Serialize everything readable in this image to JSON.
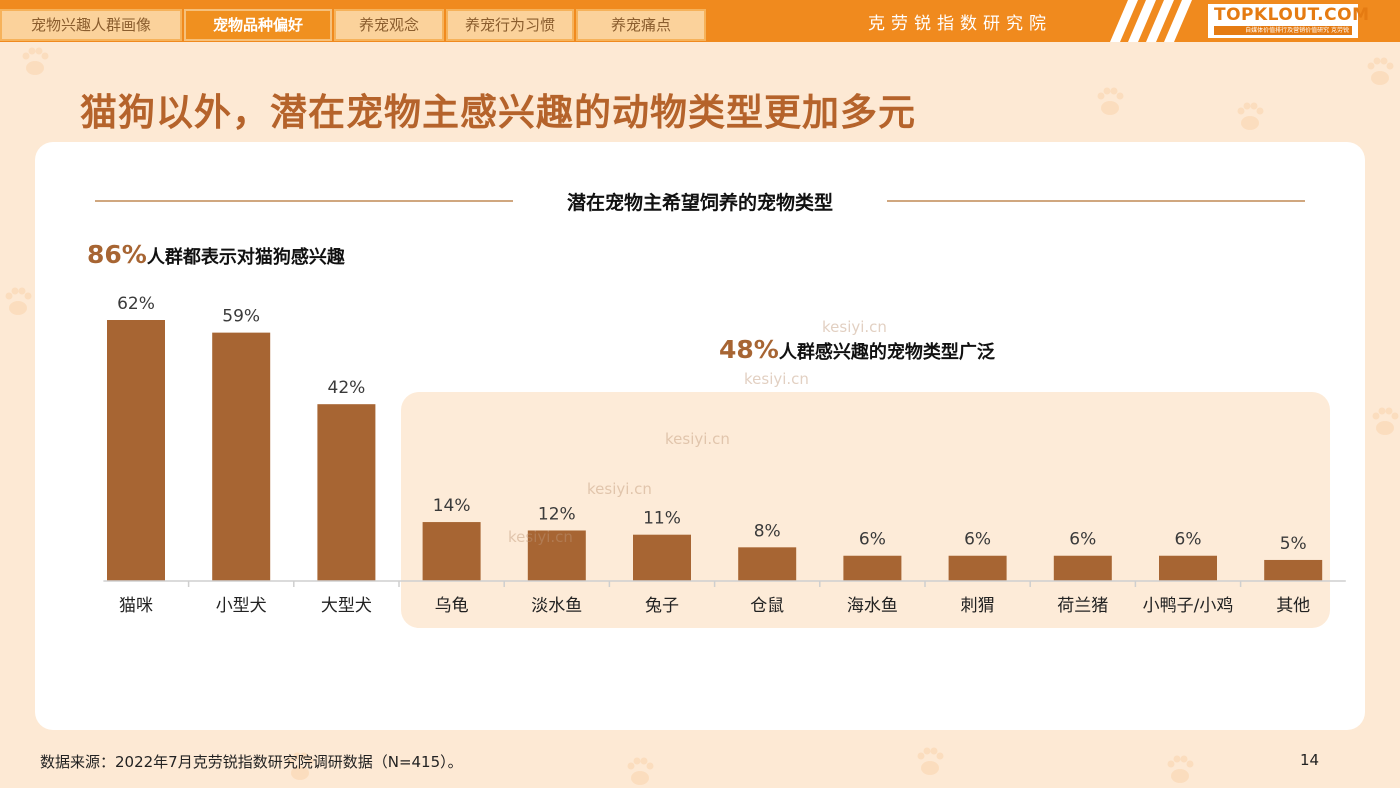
{
  "header": {
    "tabs": [
      {
        "label": "宠物兴趣人群画像",
        "active": false
      },
      {
        "label": "宠物品种偏好",
        "active": true
      },
      {
        "label": "养宠观念",
        "active": false
      },
      {
        "label": "养宠行为习惯",
        "active": false
      },
      {
        "label": "养宠痛点",
        "active": false
      }
    ],
    "institute": "克劳锐指数研究院",
    "logo": "TOPKLOUT.COM",
    "logo_sub": "自媒体价值排行及营销价值研究 克劳锐"
  },
  "page_title": "猫狗以外，潜在宠物主感兴趣的动物类型更加多元",
  "chart_data": {
    "type": "bar",
    "title": "潜在宠物主希望饲养的宠物类型",
    "categories": [
      "猫咪",
      "小型犬",
      "大型犬",
      "乌龟",
      "淡水鱼",
      "兔子",
      "仓鼠",
      "海水鱼",
      "刺猬",
      "荷兰猪",
      "小鸭子/小鸡",
      "其他"
    ],
    "values": [
      62,
      59,
      42,
      14,
      12,
      11,
      8,
      6,
      6,
      6,
      6,
      5
    ],
    "value_labels": [
      "62%",
      "59%",
      "42%",
      "14%",
      "12%",
      "11%",
      "8%",
      "6%",
      "6%",
      "6%",
      "6%",
      "5%"
    ],
    "unit": "%",
    "ylim": [
      0,
      70
    ],
    "grid": false,
    "bar_color": "#a76533",
    "highlight_group": {
      "from_index": 3,
      "to_index": 11,
      "color": "#fdebd8"
    },
    "annotations": [
      {
        "percent": "86%",
        "text": "人群都表示对猫狗感兴趣"
      },
      {
        "percent": "48%",
        "text": "人群感兴趣的宠物类型广泛"
      }
    ]
  },
  "watermark": "kesiyi.cn",
  "footer": {
    "source": "数据来源：2022年7月克劳锐指数研究院调研数据（N=415）。",
    "page": "14"
  },
  "colors": {
    "background": "#fde9d4",
    "topbar": "#f08a1e",
    "title": "#b5632b",
    "bar": "#a76533"
  }
}
